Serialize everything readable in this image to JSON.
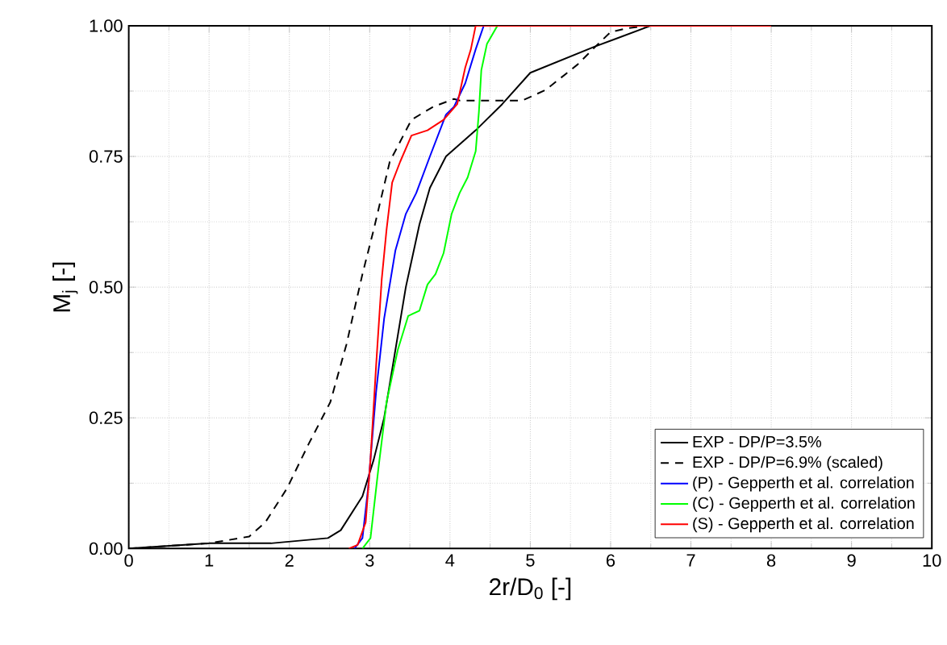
{
  "chart_data": {
    "type": "line",
    "xlabel": "2r/D$_{0}$ [-]",
    "ylabel": "M$_{j}$ [-]",
    "xlim": [
      0,
      10
    ],
    "ylim": [
      0,
      1
    ],
    "xticks": [
      0,
      1,
      2,
      3,
      4,
      5,
      6,
      7,
      8,
      9,
      10
    ],
    "yticks": [
      {
        "value": 0,
        "label": "0.00"
      },
      {
        "value": 0.25,
        "label": "0.25"
      },
      {
        "value": 0.5,
        "label": "0.50"
      },
      {
        "value": 0.75,
        "label": "0.75"
      },
      {
        "value": 1,
        "label": "1.00"
      }
    ],
    "grid": true,
    "legend": "bottom right",
    "marker": "none",
    "series": [
      {
        "name": "EXP - DP/P=3.5%",
        "color": "#000000",
        "line_style": "solid",
        "x": [
          0,
          1,
          1.77,
          2.48,
          2.64,
          2.91,
          3.05,
          3.18,
          3.45,
          3.62,
          3.75,
          3.95,
          4.32,
          4.65,
          5.0,
          5.8,
          6.5,
          7.0
        ],
        "values": [
          0,
          0.01,
          0.01,
          0.02,
          0.035,
          0.1,
          0.17,
          0.25,
          0.5,
          0.62,
          0.69,
          0.75,
          0.8,
          0.85,
          0.91,
          0.96,
          1.0,
          1.0
        ]
      },
      {
        "name": "EXP - DP/P=6.9% (scaled)",
        "color": "#000000",
        "line_style": "dashed",
        "x": [
          0,
          1,
          1.5,
          1.7,
          1.97,
          2.24,
          2.51,
          2.71,
          2.91,
          3.05,
          3.25,
          3.52,
          3.79,
          4.05,
          4.12,
          4.9,
          5.19,
          5.59,
          5.79,
          6.0,
          6.2,
          6.46
        ],
        "values": [
          0,
          0.01,
          0.023,
          0.05,
          0.115,
          0.2,
          0.28,
          0.39,
          0.525,
          0.61,
          0.74,
          0.82,
          0.845,
          0.86,
          0.857,
          0.857,
          0.877,
          0.926,
          0.957,
          0.988,
          0.995,
          1.0
        ]
      },
      {
        "name": "(P) - Gepperth et al. correlation",
        "color": "#0000ff",
        "line_style": "solid",
        "x": [
          2.81,
          2.91,
          2.98,
          3.08,
          3.18,
          3.32,
          3.45,
          3.58,
          3.75,
          3.95,
          4.05,
          4.19,
          4.32,
          4.42
        ],
        "values": [
          0,
          0.02,
          0.115,
          0.3,
          0.44,
          0.57,
          0.64,
          0.68,
          0.75,
          0.83,
          0.845,
          0.89,
          0.955,
          1.0
        ]
      },
      {
        "name": "(C) - Gepperth et al. correlation",
        "color": "#00ff00",
        "line_style": "solid",
        "x": [
          2.91,
          3.01,
          3.11,
          3.21,
          3.35,
          3.48,
          3.62,
          3.72,
          3.82,
          3.92,
          4.02,
          4.12,
          4.22,
          4.32,
          4.36,
          4.39,
          4.46,
          4.59
        ],
        "values": [
          0,
          0.02,
          0.155,
          0.28,
          0.38,
          0.445,
          0.455,
          0.505,
          0.525,
          0.565,
          0.64,
          0.68,
          0.71,
          0.76,
          0.835,
          0.915,
          0.965,
          1.0
        ]
      },
      {
        "name": "(S) - Gepperth et al. correlation",
        "color": "#ff0000",
        "line_style": "solid",
        "x": [
          2.74,
          2.85,
          2.95,
          3.01,
          3.08,
          3.15,
          3.21,
          3.28,
          3.38,
          3.52,
          3.72,
          3.92,
          4.09,
          4.19,
          4.26,
          4.32,
          8.0
        ],
        "values": [
          0,
          0.007,
          0.05,
          0.17,
          0.35,
          0.515,
          0.61,
          0.7,
          0.74,
          0.79,
          0.8,
          0.82,
          0.85,
          0.92,
          0.955,
          1.0,
          1.0
        ]
      }
    ]
  }
}
